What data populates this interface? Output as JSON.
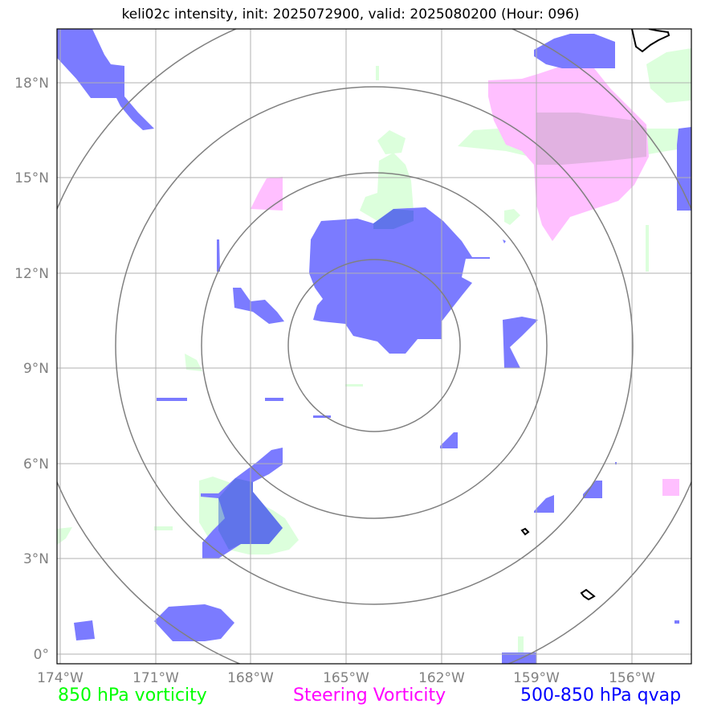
{
  "title": "keli02c intensity, init: 2025072900, valid: 2025080200 (Hour: 096)",
  "x_ticks": [
    "174°W",
    "171°W",
    "168°W",
    "165°W",
    "162°W",
    "159°W",
    "156°W"
  ],
  "y_ticks": [
    "0°",
    "3°N",
    "6°N",
    "9°N",
    "12°N",
    "15°N",
    "18°N"
  ],
  "legend": {
    "vorticity_850": {
      "label": "850 hPa vorticity",
      "color": "#00ff00"
    },
    "steering": {
      "label": "Steering Vorticity",
      "color": "#ff00ff"
    },
    "qvap": {
      "label": "500-850 hPa qvap",
      "color": "#0000ff"
    }
  },
  "colors": {
    "qvap_fill": "#7b7bff",
    "steering_fill": "#ffbfff",
    "vort850_fill": "#dcffdc",
    "grid": "#b0b0b0",
    "range_rings": "#808080",
    "coastline": "#000000"
  },
  "range_rings_count": 4
}
